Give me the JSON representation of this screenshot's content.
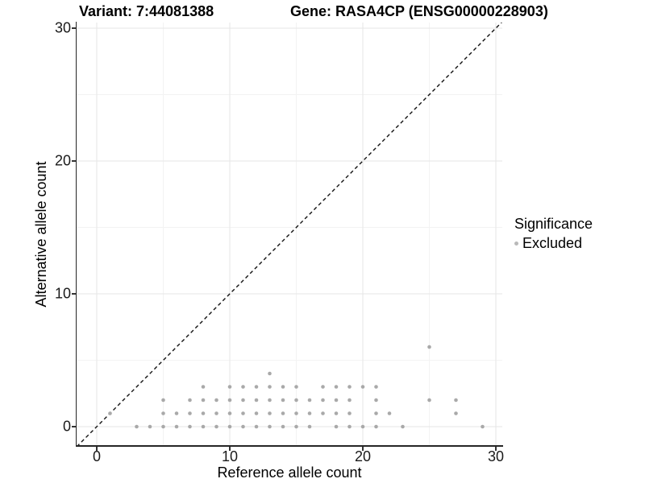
{
  "header": {
    "variant_title": "Variant: 7:44081388",
    "gene_title": "Gene: RASA4CP (ENSG00000228903)"
  },
  "axes": {
    "x_label": "Reference allele count",
    "y_label": "Alternative allele count"
  },
  "legend": {
    "title": "Significance",
    "items": [
      {
        "label": "Excluded",
        "color": "#b9b9b9"
      }
    ]
  },
  "chart_data": {
    "type": "scatter",
    "title": "Variant: 7:44081388   Gene: RASA4CP (ENSG00000228903)",
    "xlabel": "Reference allele count",
    "ylabel": "Alternative allele count",
    "xlim": [
      -1.5,
      30.6
    ],
    "ylim": [
      -1.5,
      30.5
    ],
    "x_major_ticks": [
      0,
      10,
      20,
      30
    ],
    "x_minor_ticks": [
      5,
      15,
      25
    ],
    "y_major_ticks": [
      0,
      10,
      20,
      30
    ],
    "y_minor_ticks": [
      5,
      15,
      25
    ],
    "grid": true,
    "legend_position": "right",
    "reference_line": {
      "kind": "identity_y_equals_x",
      "style": "dashed",
      "color": "#111111"
    },
    "point_color": "#a9a9a9",
    "grid_major_color": "#e9e9e9",
    "grid_minor_color": "#f3f3f3",
    "series": [
      {
        "name": "Excluded",
        "color": "#a9a9a9",
        "points": [
          [
            1,
            1
          ],
          [
            3,
            0
          ],
          [
            4,
            0
          ],
          [
            5,
            0
          ],
          [
            5,
            1
          ],
          [
            5,
            2
          ],
          [
            6,
            0
          ],
          [
            6,
            1
          ],
          [
            7,
            0
          ],
          [
            7,
            1
          ],
          [
            7,
            2
          ],
          [
            8,
            0
          ],
          [
            8,
            1
          ],
          [
            8,
            2
          ],
          [
            8,
            3
          ],
          [
            9,
            0
          ],
          [
            9,
            1
          ],
          [
            9,
            2
          ],
          [
            10,
            0
          ],
          [
            10,
            1
          ],
          [
            10,
            2
          ],
          [
            10,
            3
          ],
          [
            11,
            0
          ],
          [
            11,
            1
          ],
          [
            11,
            2
          ],
          [
            11,
            3
          ],
          [
            12,
            0
          ],
          [
            12,
            1
          ],
          [
            12,
            2
          ],
          [
            12,
            3
          ],
          [
            13,
            0
          ],
          [
            13,
            1
          ],
          [
            13,
            2
          ],
          [
            13,
            3
          ],
          [
            13,
            4
          ],
          [
            14,
            0
          ],
          [
            14,
            1
          ],
          [
            14,
            2
          ],
          [
            14,
            3
          ],
          [
            15,
            0
          ],
          [
            15,
            1
          ],
          [
            15,
            2
          ],
          [
            15,
            3
          ],
          [
            16,
            0
          ],
          [
            16,
            1
          ],
          [
            16,
            2
          ],
          [
            17,
            1
          ],
          [
            17,
            2
          ],
          [
            17,
            3
          ],
          [
            18,
            0
          ],
          [
            18,
            1
          ],
          [
            18,
            2
          ],
          [
            18,
            3
          ],
          [
            19,
            0
          ],
          [
            19,
            1
          ],
          [
            19,
            2
          ],
          [
            19,
            3
          ],
          [
            20,
            0
          ],
          [
            20,
            3
          ],
          [
            21,
            0
          ],
          [
            21,
            1
          ],
          [
            21,
            2
          ],
          [
            21,
            3
          ],
          [
            22,
            1
          ],
          [
            23,
            0
          ],
          [
            25,
            2
          ],
          [
            25,
            6
          ],
          [
            27,
            1
          ],
          [
            27,
            2
          ],
          [
            29,
            0
          ]
        ]
      }
    ]
  }
}
